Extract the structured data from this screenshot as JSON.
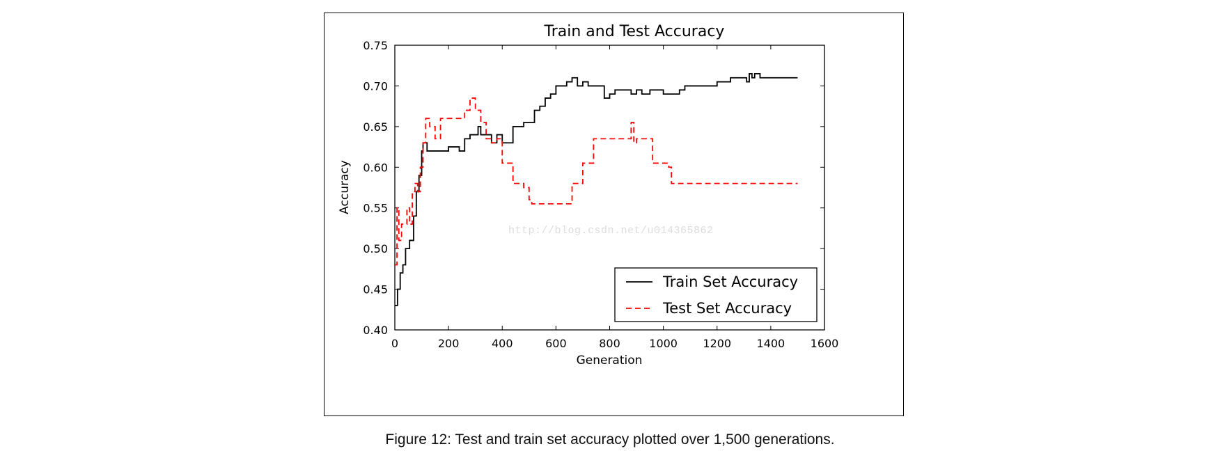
{
  "caption": "Figure 12: Test and train set accuracy plotted over 1,500 generations.",
  "watermark": "http://blog.csdn.net/u014365862",
  "chart_data": {
    "type": "line",
    "title": "Train and Test Accuracy",
    "xlabel": "Generation",
    "ylabel": "Accuracy",
    "xlim": [
      0,
      1600
    ],
    "ylim": [
      0.4,
      0.75
    ],
    "xticks": [
      "0",
      "200",
      "400",
      "600",
      "800",
      "1000",
      "1200",
      "1400",
      "1600"
    ],
    "yticks": [
      "0.40",
      "0.45",
      "0.50",
      "0.55",
      "0.60",
      "0.65",
      "0.70",
      "0.75"
    ],
    "grid": false,
    "legend_position": "lower-right",
    "series": [
      {
        "name": "Train Set Accuracy",
        "color": "#000000",
        "style": "solid",
        "x": [
          0,
          10,
          20,
          30,
          40,
          55,
          70,
          80,
          90,
          100,
          105,
          120,
          150,
          180,
          200,
          220,
          240,
          260,
          280,
          300,
          310,
          320,
          340,
          360,
          380,
          400,
          420,
          440,
          460,
          480,
          500,
          520,
          540,
          560,
          580,
          600,
          620,
          640,
          660,
          680,
          700,
          720,
          740,
          760,
          780,
          800,
          820,
          840,
          860,
          880,
          900,
          920,
          950,
          1000,
          1030,
          1060,
          1080,
          1100,
          1150,
          1200,
          1250,
          1300,
          1310,
          1320,
          1330,
          1340,
          1360,
          1400,
          1450,
          1500
        ],
        "y": [
          0.43,
          0.45,
          0.47,
          0.48,
          0.5,
          0.51,
          0.54,
          0.57,
          0.59,
          0.62,
          0.63,
          0.62,
          0.62,
          0.62,
          0.625,
          0.625,
          0.62,
          0.635,
          0.64,
          0.64,
          0.65,
          0.64,
          0.64,
          0.63,
          0.64,
          0.63,
          0.63,
          0.65,
          0.65,
          0.655,
          0.655,
          0.67,
          0.675,
          0.685,
          0.69,
          0.7,
          0.7,
          0.705,
          0.71,
          0.7,
          0.705,
          0.7,
          0.7,
          0.7,
          0.685,
          0.69,
          0.695,
          0.695,
          0.695,
          0.69,
          0.695,
          0.69,
          0.695,
          0.69,
          0.69,
          0.695,
          0.7,
          0.7,
          0.7,
          0.705,
          0.71,
          0.71,
          0.705,
          0.715,
          0.71,
          0.715,
          0.71,
          0.71,
          0.71,
          0.71
        ]
      },
      {
        "name": "Test Set Accuracy",
        "color": "#ff0000",
        "style": "dashed",
        "x": [
          0,
          8,
          15,
          25,
          35,
          45,
          55,
          65,
          75,
          85,
          95,
          105,
          115,
          130,
          150,
          170,
          200,
          230,
          260,
          280,
          300,
          320,
          340,
          360,
          380,
          400,
          420,
          440,
          460,
          480,
          500,
          510,
          520,
          560,
          600,
          640,
          660,
          680,
          700,
          740,
          800,
          860,
          880,
          890,
          900,
          940,
          960,
          1000,
          1020,
          1030,
          1060,
          1100,
          1200,
          1300,
          1400,
          1500
        ],
        "y": [
          0.48,
          0.55,
          0.51,
          0.53,
          0.53,
          0.55,
          0.53,
          0.57,
          0.58,
          0.57,
          0.6,
          0.63,
          0.66,
          0.65,
          0.635,
          0.66,
          0.66,
          0.66,
          0.67,
          0.685,
          0.67,
          0.655,
          0.635,
          0.63,
          0.635,
          0.605,
          0.605,
          0.58,
          0.58,
          0.575,
          0.56,
          0.555,
          0.555,
          0.555,
          0.555,
          0.555,
          0.58,
          0.58,
          0.605,
          0.635,
          0.635,
          0.635,
          0.655,
          0.63,
          0.635,
          0.635,
          0.605,
          0.605,
          0.6,
          0.58,
          0.58,
          0.58,
          0.58,
          0.58,
          0.58,
          0.58
        ]
      }
    ]
  }
}
